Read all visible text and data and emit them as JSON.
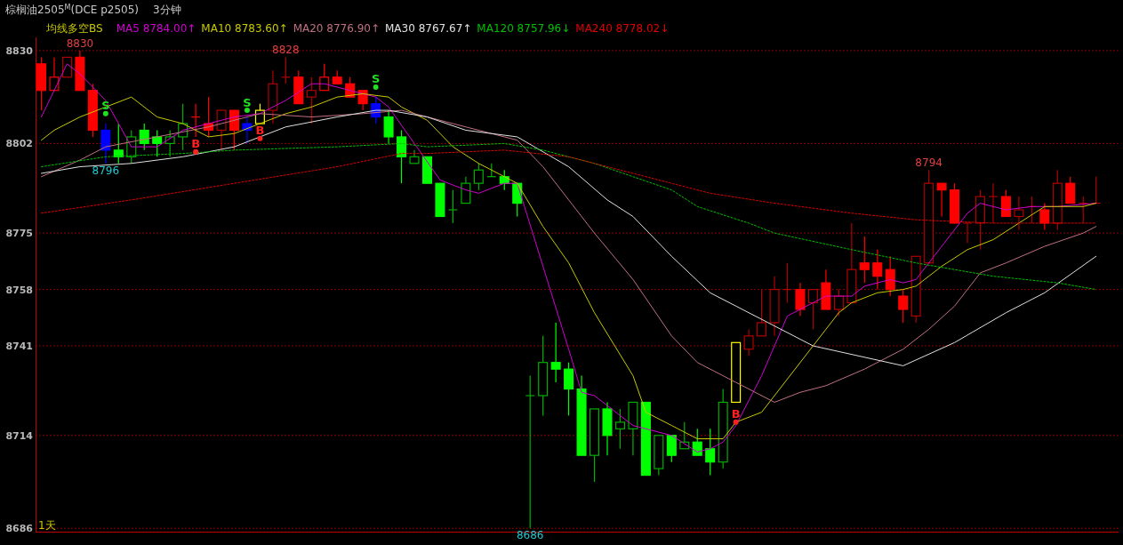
{
  "chart_data": {
    "type": "candlestick",
    "title": "棕榈油2505$^{M}$(DCE p2505)",
    "subtitle": "3分钟",
    "legend_title": "均线多空BS",
    "categories": [
      null,
      null,
      null,
      null,
      null,
      null,
      null,
      null,
      null,
      null,
      null,
      null,
      null,
      null,
      null,
      null,
      null,
      null,
      null,
      null,
      null,
      null,
      null,
      null,
      null,
      null,
      null,
      null,
      null,
      null,
      null,
      null,
      null,
      null,
      null,
      null,
      null,
      null,
      null,
      null,
      null,
      null,
      null,
      null,
      null,
      null,
      null,
      null,
      null,
      null,
      null,
      null,
      null,
      null,
      null,
      null,
      null,
      null,
      null,
      null,
      null,
      null,
      null,
      null,
      null,
      null,
      null,
      null,
      null,
      null,
      null,
      null,
      null,
      null,
      null,
      null,
      null,
      null,
      null,
      null,
      null,
      null,
      null
    ],
    "value_labels": [
      null,
      null,
      null,
      "8830",
      null,
      "8796",
      null,
      null,
      null,
      null,
      null,
      null,
      null,
      null,
      null,
      null,
      null,
      null,
      null,
      "8828",
      null,
      null,
      null,
      null,
      null,
      null,
      null,
      null,
      null,
      null,
      null,
      null,
      null,
      null,
      null,
      null,
      null,
      null,
      "8686",
      null,
      null,
      null,
      null,
      null,
      null,
      null,
      null,
      null,
      null,
      null,
      null,
      null,
      null,
      null,
      null,
      null,
      null,
      null,
      null,
      null,
      null,
      null,
      null,
      null,
      null,
      null,
      null,
      null,
      null,
      "8794",
      null,
      null,
      null,
      null,
      null,
      null,
      null,
      null,
      null,
      null,
      null,
      null,
      null
    ],
    "ohlc": [
      [
        8826,
        8828,
        8812,
        8818
      ],
      [
        8818,
        8828,
        8818,
        8822
      ],
      [
        8822,
        8828,
        8822,
        8828
      ],
      [
        8828,
        8830,
        8818,
        8818
      ],
      [
        8818,
        8820,
        8804,
        8806
      ],
      [
        8806,
        8808,
        8796,
        8800
      ],
      [
        8800,
        8808,
        8796,
        8798
      ],
      [
        8798,
        8806,
        8796,
        8804
      ],
      [
        8806,
        8808,
        8800,
        8802
      ],
      [
        8804,
        8806,
        8798,
        8802
      ],
      [
        8802,
        8806,
        8798,
        8804
      ],
      [
        8804,
        8814,
        8800,
        8808
      ],
      [
        8810,
        8814,
        8804,
        8810
      ],
      [
        8808,
        8816,
        8804,
        8806
      ],
      [
        8806,
        8812,
        8800,
        8812
      ],
      [
        8812,
        8812,
        8800,
        8806
      ],
      [
        8808,
        8810,
        8802,
        8806
      ],
      [
        8808,
        8814,
        8808,
        8812
      ],
      [
        8812,
        8824,
        8808,
        8820
      ],
      [
        8822,
        8828,
        8820,
        8822
      ],
      [
        8822,
        8824,
        8814,
        8814
      ],
      [
        8816,
        8822,
        8808,
        8818
      ],
      [
        8818,
        8826,
        8818,
        8822
      ],
      [
        8822,
        8824,
        8820,
        8820
      ],
      [
        8820,
        8822,
        8816,
        8816
      ],
      [
        8818,
        8818,
        8812,
        8814
      ],
      [
        8814,
        8816,
        8808,
        8810
      ],
      [
        8810,
        8812,
        8802,
        8804
      ],
      [
        8804,
        8806,
        8790,
        8798
      ],
      [
        8796,
        8800,
        8796,
        8798
      ],
      [
        8798,
        8798,
        8790,
        8790
      ],
      [
        8790,
        8790,
        8780,
        8780
      ],
      [
        8782,
        8788,
        8778,
        8782
      ],
      [
        8784,
        8792,
        8784,
        8790
      ],
      [
        8790,
        8796,
        8788,
        8794
      ],
      [
        8792,
        8796,
        8792,
        8792
      ],
      [
        8792,
        8794,
        8788,
        8790
      ],
      [
        8790,
        8790,
        8780,
        8784
      ],
      [
        8726,
        8732,
        8686,
        8726
      ],
      [
        8726,
        8744,
        8720,
        8736
      ],
      [
        8736,
        8748,
        8730,
        8734
      ],
      [
        8734,
        8736,
        8720,
        8728
      ],
      [
        8728,
        8732,
        8708,
        8708
      ],
      [
        8708,
        8722,
        8700,
        8722
      ],
      [
        8722,
        8724,
        8708,
        8714
      ],
      [
        8716,
        8722,
        8710,
        8718
      ],
      [
        8716,
        8724,
        8708,
        8724
      ],
      [
        8724,
        8724,
        8702,
        8702
      ],
      [
        8704,
        8714,
        8702,
        8714
      ],
      [
        8714,
        8714,
        8706,
        8708
      ],
      [
        8710,
        8718,
        8710,
        8712
      ],
      [
        8712,
        8716,
        8708,
        8708
      ],
      [
        8710,
        8716,
        8702,
        8706
      ],
      [
        8706,
        8728,
        8704,
        8724
      ],
      [
        8724,
        8742,
        8724,
        8742
      ],
      [
        8740,
        8746,
        8738,
        8744
      ],
      [
        8744,
        8758,
        8744,
        8748
      ],
      [
        8748,
        8762,
        8744,
        8758
      ],
      [
        8758,
        8766,
        8754,
        8758
      ],
      [
        8758,
        8760,
        8750,
        8752
      ],
      [
        8754,
        8758,
        8746,
        8758
      ],
      [
        8760,
        8764,
        8752,
        8752
      ],
      [
        8752,
        8758,
        8750,
        8756
      ],
      [
        8754,
        8778,
        8754,
        8764
      ],
      [
        8766,
        8774,
        8760,
        8764
      ],
      [
        8766,
        8770,
        8758,
        8762
      ],
      [
        8764,
        8768,
        8756,
        8758
      ],
      [
        8756,
        8758,
        8748,
        8752
      ],
      [
        8750,
        8768,
        8748,
        8768
      ],
      [
        8766,
        8794,
        8766,
        8790
      ],
      [
        8790,
        8790,
        8780,
        8788
      ],
      [
        8788,
        8790,
        8778,
        8778
      ],
      [
        8778,
        8778,
        8772,
        8778
      ],
      [
        8778,
        8788,
        8770,
        8786
      ],
      [
        8786,
        8790,
        8778,
        8786
      ],
      [
        8786,
        8788,
        8780,
        8780
      ],
      [
        8780,
        8786,
        8776,
        8782
      ],
      [
        8783,
        8786,
        8778,
        8783
      ],
      [
        8782,
        8784,
        8776,
        8778
      ],
      [
        8778,
        8794,
        8776,
        8790
      ],
      [
        8790,
        8792,
        8784,
        8784
      ],
      [
        8784,
        8786,
        8778,
        8784
      ],
      [
        8784,
        8792,
        8784,
        8784
      ]
    ],
    "colors": [
      "#ff0000",
      "#ff0000",
      "#b00000",
      "#ff0000",
      "#ff0000",
      "#0000ff",
      "#00ff00",
      "#00b000",
      "#00ff00",
      "#00ff00",
      "#00b000",
      "#00b000",
      "#ff0000",
      "#ff0000",
      "#b00000",
      "#ff0000",
      "#0000ff",
      "#ffff00",
      "#b00000",
      "#b00000",
      "#ff0000",
      "#b00000",
      "#ff0000",
      "#ff0000",
      "#ff0000",
      "#ff0000",
      "#0000ff",
      "#00ff00",
      "#00ff00",
      "#00b000",
      "#00ff00",
      "#00ff00",
      "#00b000",
      "#00b000",
      "#00b000",
      "#00b000",
      "#00ff00",
      "#00ff00",
      "#00b000",
      "#00b000",
      "#00ff00",
      "#00ff00",
      "#00ff00",
      "#00b000",
      "#00ff00",
      "#00b000",
      "#00b000",
      "#00ff00",
      "#00b000",
      "#00ff00",
      "#00b000",
      "#00ff00",
      "#00ff00",
      "#00b000",
      "#ffff00",
      "#b00000",
      "#b00000",
      "#b00000",
      "#b00000",
      "#ff0000",
      "#b00000",
      "#ff0000",
      "#b00000",
      "#b00000",
      "#ff0000",
      "#ff0000",
      "#ff0000",
      "#ff0000",
      "#b00000",
      "#b00000",
      "#ff0000",
      "#ff0000",
      "#b00000",
      "#b00000",
      "#b00000",
      "#ff0000",
      "#b00000",
      "#b00000",
      "#ff0000",
      "#b00000",
      "#ff0000",
      "#b00000",
      "#b00000"
    ],
    "series": [
      {
        "name": "MA5 8784.00↑",
        "type": "line",
        "color": "#d000d0",
        "line_style": "solid",
        "values": [
          8810,
          null,
          8826,
          8823,
          null,
          8815,
          null,
          8801,
          null,
          8801,
          null,
          8806,
          null,
          8808,
          null,
          8810,
          null,
          8811,
          null,
          8815,
          null,
          8820,
          8820,
          null,
          8818,
          null,
          8816,
          8813,
          null,
          8802,
          null,
          8791,
          null,
          8788,
          8787,
          null,
          8790,
          8790,
          null,
          8765,
          null,
          8740,
          8727,
          8726,
          null,
          null,
          8717,
          null,
          null,
          8714,
          null,
          8709,
          8710,
          8712,
          8717,
          null,
          8732,
          null,
          8750,
          null,
          8754,
          8756,
          null,
          8756,
          8759,
          null,
          8761,
          8760,
          8761,
          null,
          8771,
          null,
          8781,
          8784,
          null,
          8782,
          null,
          8783,
          null,
          8783,
          null,
          null,
          8784
        ]
      },
      {
        "name": "MA10 8783.60↑",
        "type": "line",
        "color": "#c8c800",
        "line_style": "solid",
        "values": [
          8803,
          8806,
          null,
          8810,
          null,
          8813,
          null,
          8816,
          null,
          8810,
          null,
          8808,
          null,
          8804,
          null,
          8805,
          null,
          8808,
          null,
          8811,
          null,
          8813,
          null,
          8816,
          null,
          8817,
          null,
          8816,
          8813,
          null,
          8809,
          null,
          8801,
          null,
          8796,
          null,
          null,
          8790,
          null,
          8777,
          null,
          8766,
          null,
          8751,
          null,
          null,
          8732,
          8721,
          null,
          8717,
          null,
          8713,
          null,
          8713,
          8718,
          null,
          8721,
          8726,
          null,
          null,
          8741,
          null,
          8751,
          8754,
          null,
          8757,
          null,
          8758,
          8759,
          null,
          8765,
          null,
          8770,
          null,
          8773,
          null,
          8778,
          null,
          8783,
          null,
          null,
          8783,
          8784
        ]
      },
      {
        "name": "MA20 8776.90↑",
        "type": "line",
        "color": "#c07080",
        "line_style": "solid",
        "values": [
          8792,
          null,
          null,
          8797,
          null,
          8801,
          null,
          null,
          null,
          8804,
          null,
          null,
          null,
          8807,
          null,
          null,
          null,
          8811,
          null,
          null,
          null,
          8810,
          null,
          null,
          null,
          8811,
          null,
          null,
          8812,
          null,
          null,
          null,
          8808,
          null,
          null,
          null,
          8804,
          8803,
          null,
          8795,
          null,
          8785,
          null,
          8775,
          null,
          null,
          8761,
          null,
          null,
          8744,
          null,
          8736,
          null,
          null,
          8730,
          null,
          null,
          8724,
          null,
          8727,
          null,
          8729,
          null,
          null,
          8734,
          null,
          null,
          8740,
          null,
          8746,
          null,
          8753,
          null,
          8763,
          null,
          8766,
          null,
          null,
          8771,
          null,
          null,
          8775,
          8777
        ]
      },
      {
        "name": "MA30 8767.67↑",
        "type": "line",
        "color": "#e0e0e0",
        "line_style": "solid",
        "values": [
          8793,
          null,
          null,
          8795,
          null,
          null,
          null,
          8796,
          null,
          null,
          null,
          8798,
          null,
          null,
          null,
          8801,
          null,
          null,
          null,
          8807,
          null,
          null,
          null,
          8810,
          null,
          null,
          8812,
          8812,
          null,
          null,
          8810,
          null,
          null,
          8806,
          null,
          null,
          null,
          8804,
          null,
          null,
          null,
          8795,
          null,
          null,
          8785,
          null,
          8780,
          null,
          null,
          8768,
          null,
          null,
          8757,
          null,
          8753,
          null,
          null,
          8747,
          null,
          null,
          8741,
          null,
          null,
          null,
          null,
          null,
          null,
          8735,
          null,
          null,
          null,
          8742,
          null,
          null,
          null,
          8751,
          null,
          null,
          8757,
          null,
          null,
          null,
          8768
        ]
      },
      {
        "name": "MA120 8757.96↓",
        "type": "line",
        "color": "#00c000",
        "line_style": "dotted",
        "values": [
          8795,
          null,
          null,
          null,
          null,
          8798,
          null,
          null,
          null,
          null,
          null,
          8799,
          null,
          null,
          null,
          8800,
          null,
          null,
          null,
          null,
          null,
          null,
          null,
          8801,
          null,
          null,
          null,
          null,
          8802,
          null,
          8801,
          null,
          null,
          null,
          null,
          null,
          8802,
          null,
          null,
          8800,
          null,
          null,
          null,
          8796,
          null,
          null,
          8792,
          null,
          null,
          8788,
          null,
          8783,
          null,
          null,
          null,
          8778,
          null,
          8775,
          null,
          null,
          null,
          null,
          null,
          8770,
          null,
          null,
          null,
          null,
          8766,
          null,
          null,
          null,
          null,
          null,
          8762,
          null,
          null,
          null,
          null,
          8760,
          null,
          null,
          8758
        ]
      },
      {
        "name": "MA240 8778.02↓",
        "type": "line",
        "color": "#e00000",
        "line_style": "dotted",
        "values": [
          8781,
          null,
          null,
          null,
          null,
          null,
          null,
          8785,
          null,
          null,
          null,
          null,
          null,
          null,
          null,
          8790,
          null,
          null,
          null,
          null,
          null,
          null,
          null,
          8795,
          null,
          null,
          null,
          null,
          8799,
          null,
          8799,
          null,
          null,
          null,
          null,
          null,
          8800,
          null,
          null,
          null,
          null,
          8798,
          null,
          null,
          null,
          null,
          8793,
          null,
          null,
          null,
          null,
          null,
          8787,
          null,
          null,
          null,
          null,
          8784,
          null,
          null,
          null,
          null,
          null,
          8781,
          null,
          null,
          null,
          null,
          8779,
          null,
          null,
          null,
          null,
          null,
          8778,
          null,
          null,
          null,
          null,
          null,
          null,
          null,
          8778
        ]
      },
      {
        "type": "scatter",
        "color": "#20e020",
        "values": [
          null,
          null,
          null,
          null,
          null,
          8811,
          null,
          null,
          null,
          null,
          null,
          null,
          null,
          null,
          null,
          null,
          8812,
          null,
          null,
          null,
          null,
          null,
          null,
          null,
          null,
          null,
          8819,
          null,
          null,
          null,
          null,
          null,
          null,
          null,
          null,
          null,
          null,
          null,
          null,
          null,
          null,
          null,
          null,
          null,
          null,
          null,
          null,
          null,
          null,
          null,
          null,
          null,
          null,
          null,
          null,
          null,
          null,
          null,
          null,
          null,
          null,
          null,
          null,
          null,
          null,
          null,
          null,
          null,
          null,
          null,
          null,
          null,
          null,
          null,
          null,
          null,
          null,
          null,
          null,
          null,
          null,
          null,
          null
        ],
        "value_labels": [
          null,
          null,
          null,
          null,
          null,
          "S",
          null,
          null,
          null,
          null,
          null,
          null,
          null,
          null,
          null,
          null,
          "S",
          null,
          null,
          null,
          null,
          null,
          null,
          null,
          null,
          null,
          "S",
          null,
          null,
          null,
          null,
          null,
          null,
          null,
          null,
          null,
          null,
          null,
          null,
          null,
          null,
          null,
          null,
          null,
          null,
          null,
          null,
          null,
          null,
          null,
          null,
          null,
          null,
          null,
          null,
          null,
          null,
          null,
          null,
          null,
          null,
          null,
          null,
          null,
          null,
          null,
          null,
          null,
          null,
          null,
          null,
          null,
          null,
          null,
          null,
          null,
          null,
          null,
          null,
          null,
          null,
          null,
          null
        ]
      },
      {
        "type": "scatter",
        "color": "#ff2020",
        "values": [
          null,
          null,
          null,
          null,
          null,
          null,
          null,
          null,
          null,
          null,
          null,
          null,
          8799.5,
          null,
          null,
          null,
          null,
          8803.5,
          null,
          null,
          null,
          null,
          null,
          null,
          null,
          null,
          null,
          null,
          null,
          null,
          null,
          null,
          null,
          null,
          null,
          null,
          null,
          null,
          null,
          null,
          null,
          null,
          null,
          null,
          null,
          null,
          null,
          null,
          null,
          null,
          null,
          null,
          null,
          null,
          8718,
          null,
          null,
          null,
          null,
          null,
          null,
          null,
          null,
          null,
          null,
          null,
          null,
          null,
          null,
          null,
          null,
          null,
          null,
          null,
          null,
          null,
          null,
          null,
          null,
          null,
          null,
          null,
          null
        ],
        "value_labels": [
          null,
          null,
          null,
          null,
          null,
          null,
          null,
          null,
          null,
          null,
          null,
          null,
          "B",
          null,
          null,
          null,
          null,
          "B",
          null,
          null,
          null,
          null,
          null,
          null,
          null,
          null,
          null,
          null,
          null,
          null,
          null,
          null,
          null,
          null,
          null,
          null,
          null,
          null,
          null,
          null,
          null,
          null,
          null,
          null,
          null,
          null,
          null,
          null,
          null,
          null,
          null,
          null,
          null,
          null,
          "B",
          null,
          null,
          null,
          null,
          null,
          null,
          null,
          null,
          null,
          null,
          null,
          null,
          null,
          null,
          null,
          null,
          null,
          null,
          null,
          null,
          null,
          null,
          null,
          null,
          null,
          null,
          null,
          null
        ]
      }
    ],
    "ylim": [
      8685,
      8834
    ],
    "yticks": [
      8830,
      8802,
      8775,
      8758,
      8741,
      8714,
      8686
    ],
    "grid": "y",
    "tick_labels": "y",
    "annotations": [
      "1天"
    ]
  }
}
